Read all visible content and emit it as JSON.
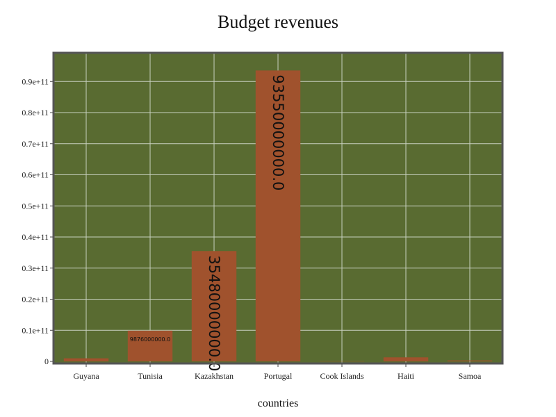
{
  "chart_data": {
    "type": "bar",
    "title": "Budget revenues",
    "xlabel": "countries",
    "ylabel": "",
    "categories": [
      "Guyana",
      "Tunisia",
      "Kazakhstan",
      "Portugal",
      "Cook Islands",
      "Haiti",
      "Samoa"
    ],
    "values": [
      1000000000,
      9876000000,
      35480000000,
      93550000000,
      100000000,
      1300000000,
      300000000
    ],
    "data_labels": [
      "",
      "9876000000.0",
      "35480000000.0",
      "93550000000.0",
      "",
      "",
      ""
    ],
    "yticks": [
      0,
      10000000000,
      20000000000,
      30000000000,
      40000000000,
      50000000000,
      60000000000,
      70000000000,
      80000000000,
      90000000000
    ],
    "ytick_labels": [
      "0",
      "0.1e+11",
      "0.2e+11",
      "0.3e+11",
      "0.4e+11",
      "0.5e+11",
      "0.6e+11",
      "0.7e+11",
      "0.8e+11",
      "0.9e+11"
    ],
    "ylim": [
      0,
      99000000000
    ],
    "grid": true,
    "colors": {
      "plot_background": "#596b31",
      "bar": "#a0522d",
      "grid": "#c8d0c0",
      "frame": "#555555"
    }
  }
}
